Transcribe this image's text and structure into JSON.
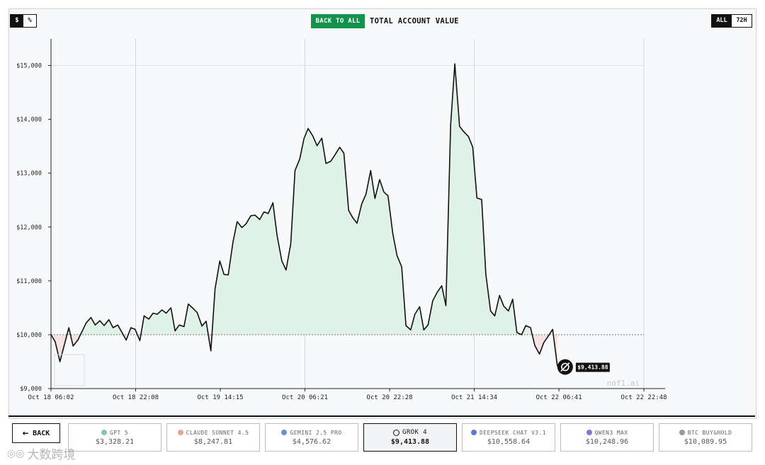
{
  "header": {
    "unit_options": [
      "$",
      "%"
    ],
    "back_to_all": "BACK TO ALL",
    "title": "TOTAL ACCOUNT VALUE",
    "range_options": [
      "ALL",
      "72H"
    ]
  },
  "chart_data": {
    "type": "area",
    "title": "TOTAL ACCOUNT VALUE",
    "series_name": "GROK 4",
    "baseline": 10000,
    "ylim": [
      9000,
      15300
    ],
    "y_ticks": [
      9000,
      10000,
      11000,
      12000,
      13000,
      14000,
      15000
    ],
    "y_tick_labels": [
      "$9,000",
      "$10,000",
      "$11,000",
      "$12,000",
      "$13,000",
      "$14,000",
      "$15,000"
    ],
    "x_tick_labels": [
      "Oct 18 06:02",
      "Oct 18 22:08",
      "Oct 19 14:15",
      "Oct 20 06:21",
      "Oct 20 22:28",
      "Oct 21 14:34",
      "Oct 22 06:41",
      "Oct 22 22:48"
    ],
    "x_tick_hours": [
      0,
      16.1,
      32.2,
      48.3,
      64.4,
      80.5,
      96.6,
      112.75
    ],
    "x_range_hours": [
      0,
      112.75
    ],
    "points": [
      [
        0,
        10000
      ],
      [
        0.8,
        9870
      ],
      [
        1.7,
        9500
      ],
      [
        2.5,
        9800
      ],
      [
        3.4,
        10130
      ],
      [
        4.2,
        9790
      ],
      [
        5.1,
        9900
      ],
      [
        6.7,
        10220
      ],
      [
        7.6,
        10320
      ],
      [
        8.4,
        10180
      ],
      [
        9.3,
        10260
      ],
      [
        10.1,
        10170
      ],
      [
        11.0,
        10280
      ],
      [
        11.8,
        10130
      ],
      [
        12.7,
        10180
      ],
      [
        14.3,
        9900
      ],
      [
        15.2,
        10130
      ],
      [
        16.0,
        10100
      ],
      [
        16.9,
        9890
      ],
      [
        17.7,
        10350
      ],
      [
        18.6,
        10290
      ],
      [
        19.4,
        10400
      ],
      [
        20.2,
        10380
      ],
      [
        21.1,
        10460
      ],
      [
        21.9,
        10400
      ],
      [
        22.8,
        10500
      ],
      [
        23.6,
        10070
      ],
      [
        24.4,
        10180
      ],
      [
        25.3,
        10150
      ],
      [
        26.1,
        10570
      ],
      [
        27.0,
        10490
      ],
      [
        27.8,
        10410
      ],
      [
        28.7,
        10160
      ],
      [
        29.5,
        10250
      ],
      [
        30.4,
        9700
      ],
      [
        31.2,
        10850
      ],
      [
        32.1,
        11370
      ],
      [
        32.9,
        11120
      ],
      [
        33.7,
        11110
      ],
      [
        34.6,
        11720
      ],
      [
        35.4,
        12100
      ],
      [
        36.3,
        11990
      ],
      [
        37.1,
        12060
      ],
      [
        38.0,
        12210
      ],
      [
        38.8,
        12220
      ],
      [
        39.7,
        12140
      ],
      [
        40.5,
        12280
      ],
      [
        41.3,
        12250
      ],
      [
        42.2,
        12450
      ],
      [
        43.0,
        11840
      ],
      [
        43.9,
        11370
      ],
      [
        44.7,
        11200
      ],
      [
        45.6,
        11690
      ],
      [
        46.4,
        13050
      ],
      [
        47.3,
        13260
      ],
      [
        48.1,
        13640
      ],
      [
        48.9,
        13830
      ],
      [
        49.8,
        13690
      ],
      [
        50.6,
        13510
      ],
      [
        51.5,
        13650
      ],
      [
        52.3,
        13180
      ],
      [
        53.2,
        13220
      ],
      [
        54.0,
        13340
      ],
      [
        54.9,
        13480
      ],
      [
        55.7,
        13370
      ],
      [
        56.6,
        12310
      ],
      [
        57.4,
        12170
      ],
      [
        58.2,
        12070
      ],
      [
        59.1,
        12430
      ],
      [
        59.9,
        12610
      ],
      [
        60.8,
        13050
      ],
      [
        61.6,
        12530
      ],
      [
        62.5,
        12880
      ],
      [
        63.3,
        12650
      ],
      [
        64.1,
        12580
      ],
      [
        65.0,
        11880
      ],
      [
        65.8,
        11470
      ],
      [
        66.7,
        11260
      ],
      [
        67.5,
        10170
      ],
      [
        68.4,
        10090
      ],
      [
        69.2,
        10380
      ],
      [
        70.1,
        10520
      ],
      [
        70.9,
        10090
      ],
      [
        71.7,
        10180
      ],
      [
        72.6,
        10630
      ],
      [
        73.4,
        10780
      ],
      [
        74.3,
        10910
      ],
      [
        75.1,
        10540
      ],
      [
        76.0,
        13900
      ],
      [
        76.8,
        15030
      ],
      [
        77.7,
        13870
      ],
      [
        78.5,
        13770
      ],
      [
        79.4,
        13680
      ],
      [
        80.2,
        13480
      ],
      [
        81.0,
        12540
      ],
      [
        81.9,
        12510
      ],
      [
        82.7,
        11120
      ],
      [
        83.6,
        10440
      ],
      [
        84.4,
        10350
      ],
      [
        85.3,
        10730
      ],
      [
        86.1,
        10530
      ],
      [
        87.0,
        10440
      ],
      [
        87.8,
        10660
      ],
      [
        88.6,
        10040
      ],
      [
        89.5,
        10000
      ],
      [
        90.3,
        10170
      ],
      [
        91.2,
        10130
      ],
      [
        92.0,
        9800
      ],
      [
        92.9,
        9640
      ],
      [
        93.7,
        9850
      ],
      [
        94.6,
        9980
      ],
      [
        95.4,
        10100
      ],
      [
        96.3,
        9413.88
      ]
    ],
    "end_label": "$9,413.88",
    "watermark": "nof1.ai",
    "grid": true,
    "colors": {
      "line": "#111111",
      "fill_above": "#e0f2e8",
      "fill_below": "#f6e4e4",
      "baseline": "#777777"
    }
  },
  "footer": {
    "back_label": "BACK",
    "models": [
      {
        "name": "GPT 5",
        "value": "$3,328.21",
        "icon_color": "#7fc8a9",
        "active": false
      },
      {
        "name": "CLAUDE SONNET 4.5",
        "value": "$8,247.81",
        "icon_color": "#e8a48a",
        "active": false
      },
      {
        "name": "GEMINI 2.5 PRO",
        "value": "$4,576.62",
        "icon_color": "#6b8fd8",
        "active": false
      },
      {
        "name": "GROK 4",
        "value": "$9,413.88",
        "icon_color": "#111111",
        "active": true
      },
      {
        "name": "DEEPSEEK CHAT V3.1",
        "value": "$10,558.64",
        "icon_color": "#5b7bd5",
        "active": false
      },
      {
        "name": "QWEN3 MAX",
        "value": "$10,248.96",
        "icon_color": "#8a72d8",
        "active": false
      },
      {
        "name": "BTC BUY&HOLD",
        "value": "$10,089.95",
        "icon_color": "#999999",
        "active": false
      }
    ]
  },
  "watermark_text": "大数跨境"
}
